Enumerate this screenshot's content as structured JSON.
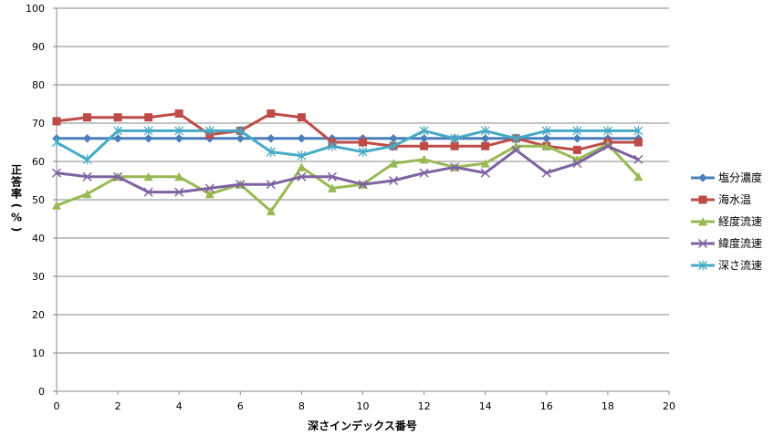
{
  "chart_data": {
    "type": "line",
    "title": "",
    "xlabel": "深さインデックス番号",
    "ylabel": "正答率(%)",
    "xlim": [
      0,
      20
    ],
    "ylim": [
      0,
      100
    ],
    "x_ticks": [
      0,
      2,
      4,
      6,
      8,
      10,
      12,
      14,
      16,
      18,
      20
    ],
    "y_ticks": [
      0,
      10,
      20,
      30,
      40,
      50,
      60,
      70,
      80,
      90,
      100
    ],
    "grid": "horizontal",
    "legend_position": "right",
    "x": [
      0,
      1,
      2,
      3,
      4,
      5,
      6,
      7,
      8,
      9,
      10,
      11,
      12,
      13,
      14,
      15,
      16,
      17,
      18,
      19
    ],
    "series": [
      {
        "name": "塩分濃度",
        "color": "#4a7ebb",
        "marker": "diamond",
        "values": [
          66,
          66,
          66,
          66,
          66,
          66,
          66,
          66,
          66,
          66,
          66,
          66,
          66,
          66,
          66,
          66,
          66,
          66,
          66,
          66
        ]
      },
      {
        "name": "海水温",
        "color": "#be4b48",
        "marker": "square",
        "values": [
          70.5,
          71.5,
          71.5,
          71.5,
          72.5,
          67,
          68,
          72.5,
          71.5,
          65,
          65,
          64,
          64,
          64,
          64,
          66,
          64,
          63,
          65,
          65
        ]
      },
      {
        "name": "経度流速",
        "color": "#98b954",
        "marker": "triangle",
        "values": [
          48.5,
          51.5,
          56,
          56,
          56,
          51.5,
          54,
          47,
          58.5,
          53,
          54,
          59.5,
          60.5,
          58.5,
          59.5,
          64,
          64,
          60.5,
          64.5,
          56
        ]
      },
      {
        "name": "緯度流速",
        "color": "#7e62a1",
        "marker": "x",
        "values": [
          57,
          56,
          56,
          52,
          52,
          53,
          54,
          54,
          56,
          56,
          54,
          55,
          57,
          58.5,
          57,
          63,
          57,
          59.5,
          64,
          60.5
        ]
      },
      {
        "name": "深さ流速",
        "color": "#46aac5",
        "marker": "star",
        "values": [
          65,
          60.5,
          68,
          68,
          68,
          68,
          68,
          62.5,
          61.5,
          64,
          62.5,
          64,
          68,
          66,
          68,
          66,
          68,
          68,
          68,
          68
        ]
      }
    ]
  }
}
